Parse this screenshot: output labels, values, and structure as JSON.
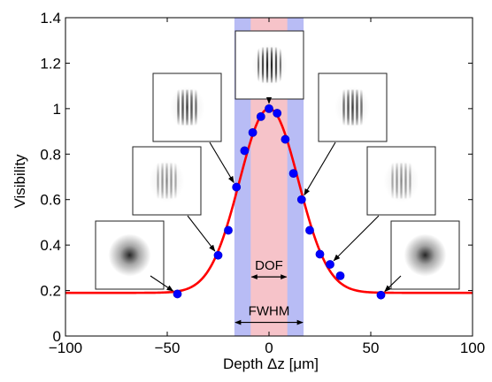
{
  "chart_data": {
    "type": "scatter",
    "title": "",
    "xlabel": "Depth Δz [μm]",
    "ylabel": "Visibility",
    "xlim": [
      -100,
      100
    ],
    "ylim": [
      0,
      1.4
    ],
    "xticks": [
      -100,
      -50,
      0,
      50,
      100
    ],
    "xtick_labels": [
      "−100",
      "−50",
      "0",
      "50",
      "100"
    ],
    "yticks": [
      0,
      0.2,
      0.4,
      0.6,
      0.8,
      1.0,
      1.2,
      1.4
    ],
    "ytick_labels": [
      "0",
      "0.2",
      "0.4",
      "0.6",
      "0.8",
      "1",
      "1.2",
      "1.4"
    ],
    "grid": false,
    "legend": "none",
    "series": [
      {
        "kind": "points",
        "color": "#0000ff",
        "x": [
          -45,
          -25,
          -20,
          -16,
          -12,
          -8,
          -4,
          0,
          4,
          8,
          12,
          16,
          20,
          25,
          30,
          35,
          55
        ],
        "y": [
          0.185,
          0.355,
          0.465,
          0.655,
          0.815,
          0.895,
          0.965,
          1.0,
          0.98,
          0.865,
          0.715,
          0.6,
          0.465,
          0.36,
          0.315,
          0.265,
          0.18
        ]
      },
      {
        "kind": "fit-curve",
        "color": "#ff0000",
        "model": "gaussian",
        "baseline": 0.19,
        "amplitude": 0.81,
        "center": 0,
        "sigma": 14.5
      }
    ],
    "bands": [
      {
        "name": "FWHM",
        "x": [
          -17,
          17
        ],
        "color": "#b8bcf5"
      },
      {
        "name": "DOF",
        "x": [
          -9,
          9
        ],
        "color": "#f6c3c9"
      }
    ],
    "annotations": [
      {
        "text": "DOF",
        "at": [
          -9,
          9
        ],
        "y": 0.26
      },
      {
        "text": "FWHM",
        "at": [
          -17,
          17
        ],
        "y": 0.06
      }
    ],
    "insets": [
      {
        "name": "inset-far-left",
        "fringes": "blurred",
        "points_to": [
          -45,
          0.185
        ]
      },
      {
        "name": "inset-left-2",
        "fringes": "faint",
        "points_to": [
          -25,
          0.355
        ]
      },
      {
        "name": "inset-left-3",
        "fringes": "visible",
        "points_to": [
          -16,
          0.655
        ]
      },
      {
        "name": "inset-center",
        "fringes": "sharp",
        "points_to": [
          0,
          1.0
        ]
      },
      {
        "name": "inset-right-3",
        "fringes": "visible",
        "points_to": [
          16,
          0.6
        ]
      },
      {
        "name": "inset-right-2",
        "fringes": "faint",
        "points_to": [
          30,
          0.315
        ]
      },
      {
        "name": "inset-far-right",
        "fringes": "blurred",
        "points_to": [
          55,
          0.18
        ]
      }
    ]
  }
}
